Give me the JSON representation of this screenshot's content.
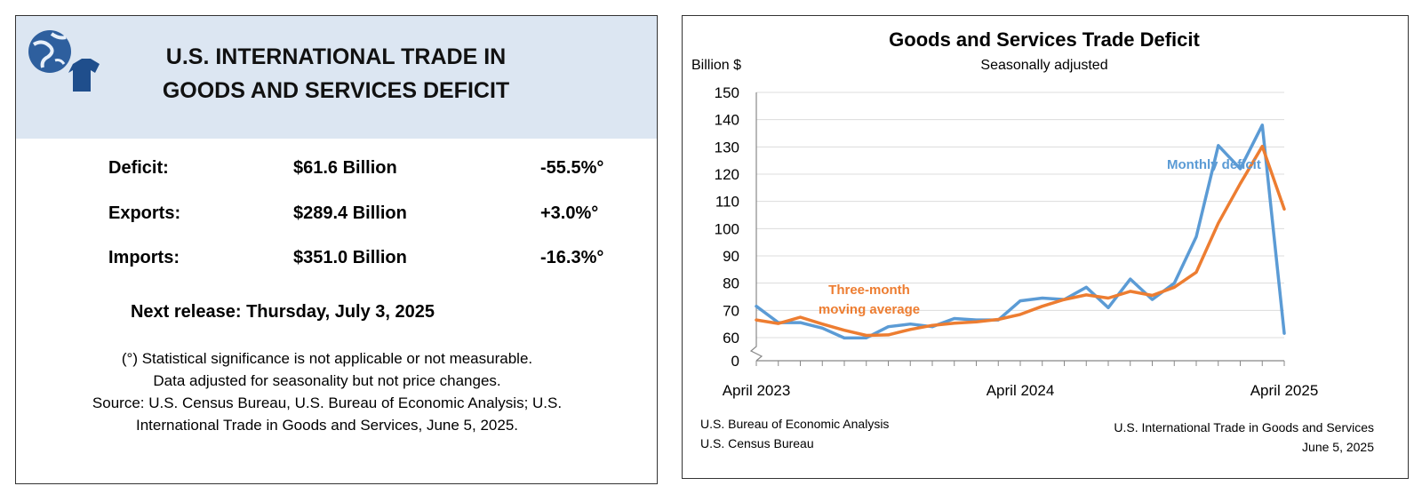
{
  "left": {
    "title_line1": "U.S. INTERNATIONAL TRADE IN",
    "title_line2": "GOODS AND SERVICES DEFICIT",
    "logo_icon": "globe-and-shirt-icon",
    "rows": [
      {
        "label": "Deficit:",
        "value": "$61.6 Billion",
        "change": "-55.5%°"
      },
      {
        "label": "Exports:",
        "value": "$289.4 Billion",
        "change": "+3.0%°"
      },
      {
        "label": "Imports:",
        "value": "$351.0 Billion",
        "change": "-16.3%°"
      }
    ],
    "next_release": "Next release: Thursday, July 3, 2025",
    "notes": [
      "(°) Statistical significance is not applicable or not measurable.",
      "Data adjusted for seasonality but not price changes.",
      "Source: U.S. Census Bureau, U.S. Bureau of Economic Analysis; U.S.",
      "International Trade in Goods and Services, June 5, 2025."
    ]
  },
  "chart_data": {
    "type": "line",
    "title": "Goods and Services Trade Deficit",
    "subtitle": "Seasonally adjusted",
    "ylabel": "Billion $",
    "ylim": [
      0,
      150
    ],
    "axis_break": "between 0 and 60",
    "yticks": [
      0,
      60,
      70,
      80,
      90,
      100,
      110,
      120,
      130,
      140,
      150
    ],
    "xtick_labels": [
      "April 2023",
      "April 2024",
      "April 2025"
    ],
    "x": [
      "2023-04",
      "2023-05",
      "2023-06",
      "2023-07",
      "2023-08",
      "2023-09",
      "2023-10",
      "2023-11",
      "2023-12",
      "2024-01",
      "2024-02",
      "2024-03",
      "2024-04",
      "2024-05",
      "2024-06",
      "2024-07",
      "2024-08",
      "2024-09",
      "2024-10",
      "2024-11",
      "2024-12",
      "2025-01",
      "2025-02",
      "2025-03",
      "2025-04"
    ],
    "series": [
      {
        "name": "Monthly deficit",
        "color": "#5b9bd5",
        "values": [
          71.5,
          65.5,
          65.5,
          63.5,
          59.0,
          59.5,
          64.0,
          65.0,
          64.0,
          67.0,
          66.5,
          66.5,
          73.5,
          74.5,
          74.0,
          78.5,
          71.0,
          81.5,
          74.0,
          80.0,
          97.0,
          130.5,
          122.0,
          138.0,
          61.6
        ]
      },
      {
        "name": "Three-month moving average",
        "color": "#ed7d31",
        "values": [
          66.5,
          65.2,
          67.5,
          65.0,
          62.7,
          60.8,
          61.0,
          63.0,
          64.5,
          65.3,
          65.8,
          66.7,
          68.5,
          71.5,
          74.0,
          75.7,
          74.5,
          77.0,
          75.5,
          78.5,
          84.0,
          102.0,
          116.5,
          130.2,
          107.2
        ]
      }
    ],
    "annotations": [
      {
        "text": "Monthly deficit",
        "color": "#5b9bd5"
      },
      {
        "text_lines": [
          "Three-month",
          "moving average"
        ],
        "color": "#ed7d31"
      }
    ],
    "grid": "horizontal",
    "source_left": [
      "U.S. Bureau of Economic Analysis",
      "U.S. Census Bureau"
    ],
    "source_right": [
      "U.S. International Trade in Goods and Services",
      "June 5, 2025"
    ]
  }
}
